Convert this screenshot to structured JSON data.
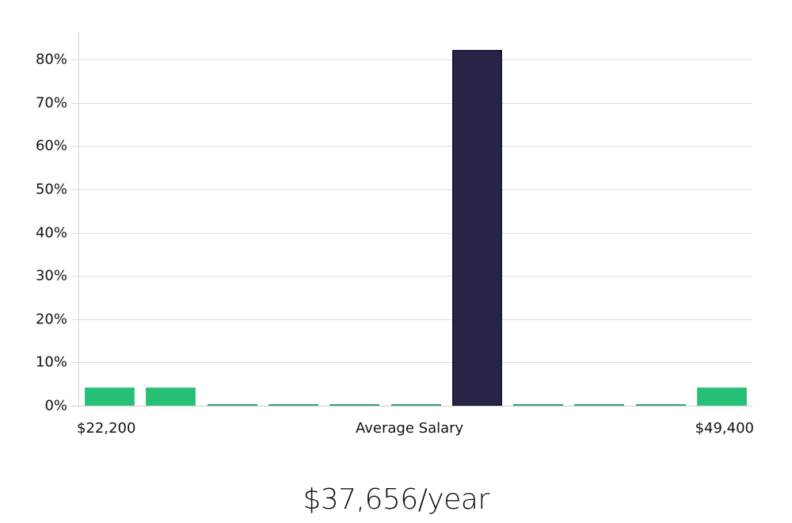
{
  "chart_data": {
    "type": "bar",
    "title": "",
    "xlabel": "Average Salary",
    "ylabel": "",
    "ylim": [
      0,
      86
    ],
    "yticks": [
      "0%",
      "10%",
      "20%",
      "30%",
      "40%",
      "50%",
      "60%",
      "70%",
      "80%"
    ],
    "ytick_values": [
      0,
      10,
      20,
      30,
      40,
      50,
      60,
      70,
      80
    ],
    "grid": true,
    "legend": null,
    "x_range_labels": {
      "min": "$22,200",
      "max": "$49,400"
    },
    "categories": [
      "bin1",
      "bin2",
      "bin3",
      "bin4",
      "bin5",
      "bin6",
      "bin7",
      "bin8",
      "bin9",
      "bin10",
      "bin11"
    ],
    "values": [
      4.3,
      4.3,
      0,
      0,
      0,
      0,
      82.2,
      0,
      0,
      0,
      4.3
    ],
    "highlight_index": 6,
    "colors": {
      "bar": "#27be75",
      "highlight": "#272546",
      "grid": "#dedede"
    }
  },
  "axis": {
    "x_min_label": "$22,200",
    "x_center_label": "Average Salary",
    "x_max_label": "$49,400"
  },
  "summary": {
    "salary_text": "$37,656/year"
  }
}
